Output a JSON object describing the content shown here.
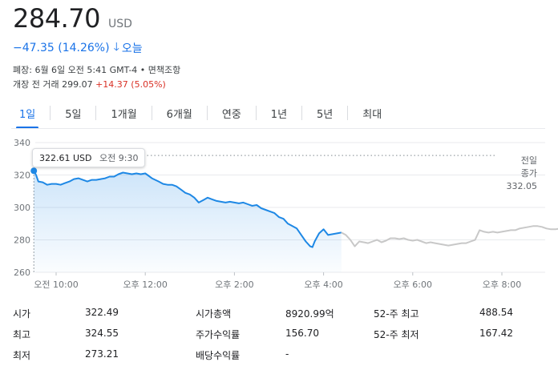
{
  "quote": {
    "price": "284.70",
    "currency": "USD",
    "change": "−47.35 (14.26%)",
    "change_icon": "arrow-down-icon",
    "change_period": "오늘",
    "closed_info": "폐장: 6월 6일 오전 5:41 GMT-4 • 면책조항",
    "premarket_label": "개장 전 거래",
    "premarket_price": "299.07",
    "premarket_change": "+14.37 (5.05%)"
  },
  "tabs": [
    {
      "label": "1일",
      "active": true
    },
    {
      "label": "5일"
    },
    {
      "label": "1개월"
    },
    {
      "label": "6개월"
    },
    {
      "label": "연중"
    },
    {
      "label": "1년"
    },
    {
      "label": "5년"
    },
    {
      "label": "최대"
    }
  ],
  "tooltip": {
    "price": "322.61 USD",
    "time": "오전 9:30"
  },
  "prev_close": {
    "label_line1": "전일",
    "label_line2": "종가",
    "value": "332.05"
  },
  "colors": {
    "accent": "#1a73e8",
    "line": "#1e88e5",
    "afterhours": "#c8c8c8",
    "up": "#d93025"
  },
  "chart_data": {
    "type": "line",
    "ylim": [
      260,
      340
    ],
    "y_ticks": [
      "340",
      "320",
      "300",
      "280",
      "260"
    ],
    "y_tick_values": [
      340,
      320,
      300,
      280,
      260
    ],
    "x_ticks": [
      "오전 10:00",
      "오후 12:00",
      "오후 2:00",
      "오후 4:00",
      "오후 6:00",
      "오후 8:00"
    ],
    "x_tick_hours": [
      10,
      12,
      14,
      16,
      18,
      20
    ],
    "reference_line": 332.05,
    "series": [
      {
        "session": "regular",
        "points": [
          [
            9.5,
            322.6
          ],
          [
            9.55,
            320
          ],
          [
            9.6,
            316
          ],
          [
            9.7,
            315.5
          ],
          [
            9.8,
            314
          ],
          [
            9.9,
            314.5
          ],
          [
            10.0,
            314.5
          ],
          [
            10.1,
            314
          ],
          [
            10.2,
            315
          ],
          [
            10.3,
            316
          ],
          [
            10.4,
            317.5
          ],
          [
            10.5,
            318
          ],
          [
            10.6,
            317
          ],
          [
            10.7,
            316
          ],
          [
            10.8,
            317
          ],
          [
            10.9,
            317
          ],
          [
            11.0,
            317.5
          ],
          [
            11.1,
            318
          ],
          [
            11.2,
            319
          ],
          [
            11.3,
            319
          ],
          [
            11.4,
            320.5
          ],
          [
            11.5,
            321.5
          ],
          [
            11.6,
            321
          ],
          [
            11.7,
            320.5
          ],
          [
            11.8,
            321
          ],
          [
            11.9,
            320.5
          ],
          [
            12.0,
            321
          ],
          [
            12.05,
            320
          ],
          [
            12.15,
            318
          ],
          [
            12.3,
            316
          ],
          [
            12.4,
            314.5
          ],
          [
            12.5,
            314
          ],
          [
            12.6,
            314
          ],
          [
            12.7,
            313
          ],
          [
            12.8,
            311
          ],
          [
            12.9,
            309
          ],
          [
            13.0,
            308
          ],
          [
            13.1,
            306
          ],
          [
            13.2,
            303
          ],
          [
            13.3,
            304.5
          ],
          [
            13.4,
            306
          ],
          [
            13.5,
            305
          ],
          [
            13.6,
            304
          ],
          [
            13.7,
            303.5
          ],
          [
            13.8,
            303
          ],
          [
            13.9,
            303.5
          ],
          [
            14.0,
            303
          ],
          [
            14.1,
            302.5
          ],
          [
            14.2,
            303
          ],
          [
            14.3,
            302
          ],
          [
            14.4,
            301
          ],
          [
            14.5,
            301.5
          ],
          [
            14.6,
            299.5
          ],
          [
            14.7,
            298.5
          ],
          [
            14.8,
            297.5
          ],
          [
            14.9,
            296.5
          ],
          [
            15.0,
            294
          ],
          [
            15.1,
            293
          ],
          [
            15.2,
            290
          ],
          [
            15.3,
            288.5
          ],
          [
            15.4,
            287
          ],
          [
            15.5,
            283
          ],
          [
            15.6,
            279
          ],
          [
            15.7,
            276
          ],
          [
            15.75,
            275.5
          ],
          [
            15.8,
            279
          ],
          [
            15.9,
            284
          ],
          [
            16.0,
            286.5
          ],
          [
            16.1,
            283
          ],
          [
            16.2,
            283.5
          ],
          [
            16.3,
            284
          ],
          [
            16.4,
            284.5
          ]
        ]
      },
      {
        "session": "after-hours",
        "points": [
          [
            16.4,
            284.5
          ],
          [
            16.5,
            283
          ],
          [
            16.6,
            280
          ],
          [
            16.7,
            276
          ],
          [
            16.8,
            279
          ],
          [
            16.9,
            278.5
          ],
          [
            17.0,
            278
          ],
          [
            17.1,
            279
          ],
          [
            17.2,
            280
          ],
          [
            17.3,
            278.5
          ],
          [
            17.4,
            279.5
          ],
          [
            17.5,
            281
          ],
          [
            17.6,
            281
          ],
          [
            17.7,
            280.5
          ],
          [
            17.8,
            281
          ],
          [
            17.9,
            280
          ],
          [
            18.0,
            279.5
          ],
          [
            18.1,
            280
          ],
          [
            18.2,
            279
          ],
          [
            18.3,
            278
          ],
          [
            18.4,
            278.5
          ],
          [
            18.5,
            278
          ],
          [
            18.6,
            277.5
          ],
          [
            18.7,
            277
          ],
          [
            18.8,
            276.5
          ],
          [
            18.9,
            277
          ],
          [
            19.0,
            277.5
          ],
          [
            19.1,
            278
          ],
          [
            19.2,
            278
          ],
          [
            19.3,
            279
          ],
          [
            19.4,
            280
          ],
          [
            19.5,
            286
          ],
          [
            19.6,
            285
          ],
          [
            19.7,
            284.5
          ],
          [
            19.8,
            285
          ],
          [
            19.9,
            284.5
          ],
          [
            20.0,
            285
          ],
          [
            20.1,
            285.5
          ],
          [
            20.2,
            286
          ],
          [
            20.3,
            286
          ],
          [
            20.4,
            287
          ],
          [
            20.5,
            287.5
          ],
          [
            20.6,
            288
          ],
          [
            20.7,
            288.5
          ],
          [
            20.8,
            288.5
          ],
          [
            20.9,
            288
          ],
          [
            21.0,
            287
          ],
          [
            21.1,
            286.5
          ],
          [
            21.2,
            286.5
          ],
          [
            21.3,
            287
          ],
          [
            21.4,
            287.5
          ],
          [
            21.5,
            286.5
          ]
        ]
      }
    ]
  },
  "stats": [
    {
      "label": "시가",
      "value": "322.49"
    },
    {
      "label": "최고",
      "value": "324.55"
    },
    {
      "label": "최저",
      "value": "273.21"
    },
    {
      "label": "시가총액",
      "value": "8920.99억"
    },
    {
      "label": "주가수익률",
      "value": "156.70"
    },
    {
      "label": "배당수익률",
      "value": "-"
    },
    {
      "label": "52-주 최고",
      "value": "488.54"
    },
    {
      "label": "52-주 최저",
      "value": "167.42"
    }
  ]
}
